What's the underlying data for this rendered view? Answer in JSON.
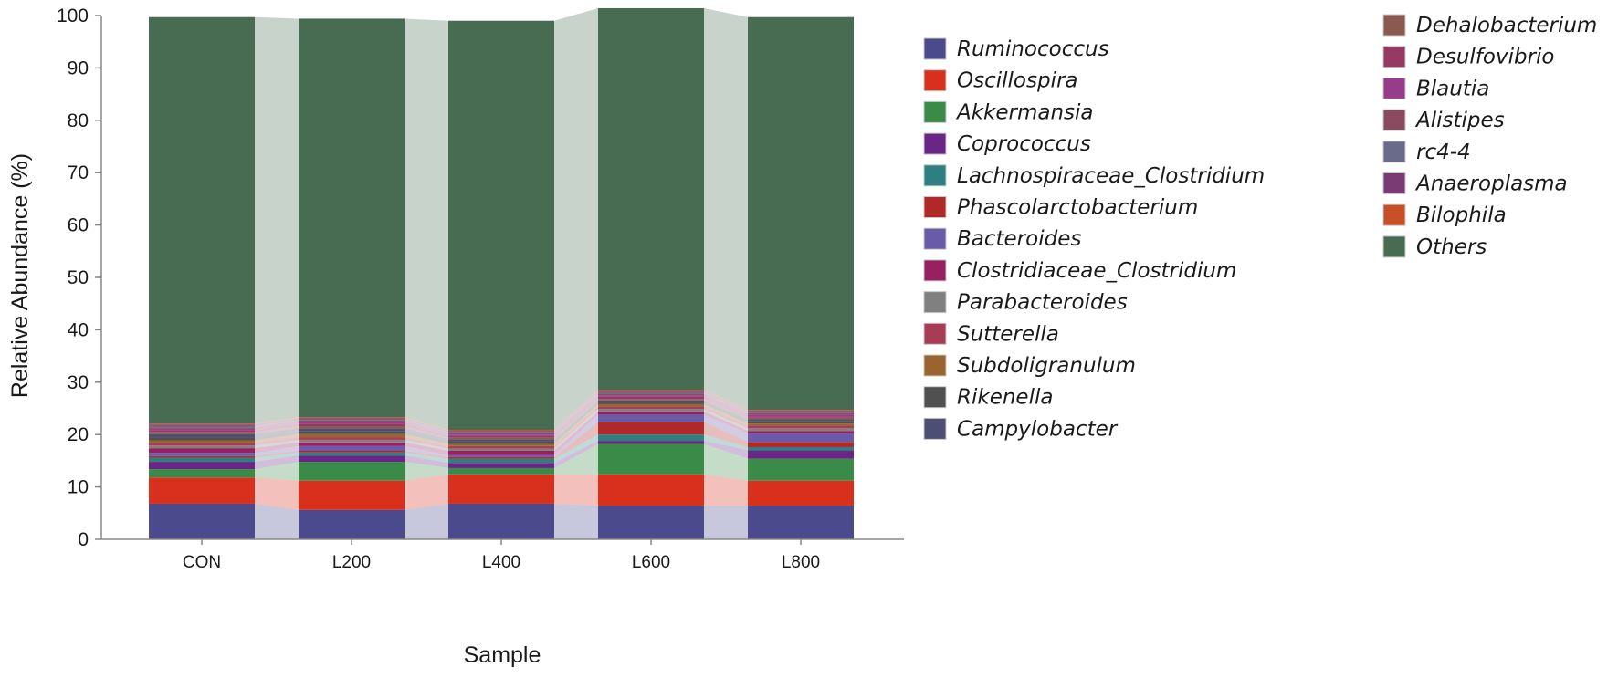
{
  "chart_data": {
    "type": "bar",
    "stacked": true,
    "xlabel": "Sample",
    "ylabel": "Relative Abundance (%)",
    "ylim": [
      0,
      100
    ],
    "yticks": [
      0,
      10,
      20,
      30,
      40,
      50,
      60,
      70,
      80,
      90,
      100
    ],
    "grid": false,
    "legend_position": "right",
    "connector_bands": true,
    "categories": [
      "CON",
      "L200",
      "L400",
      "L600",
      "L800"
    ],
    "series": [
      {
        "name": "Ruminococcus",
        "color": "#4a4a8c",
        "values": [
          6.8,
          5.6,
          6.8,
          6.4,
          6.4
        ]
      },
      {
        "name": "Oscillospira",
        "color": "#d9301e",
        "values": [
          5.0,
          5.6,
          5.6,
          6.0,
          4.8
        ]
      },
      {
        "name": "Akkermansia",
        "color": "#3a8a48",
        "values": [
          1.6,
          3.6,
          1.2,
          5.8,
          4.2
        ]
      },
      {
        "name": "Coprococcus",
        "color": "#6a2686",
        "values": [
          1.4,
          1.2,
          1.0,
          0.6,
          1.6
        ]
      },
      {
        "name": "Lachnospiraceae_Clostridium",
        "color": "#2e8080",
        "values": [
          0.8,
          0.6,
          0.8,
          1.2,
          0.6
        ]
      },
      {
        "name": "Phascolarctobacterium",
        "color": "#b02828",
        "values": [
          0.3,
          0.3,
          0.3,
          2.4,
          1.0
        ]
      },
      {
        "name": "Bacteroides",
        "color": "#6a5aaa",
        "values": [
          0.6,
          0.9,
          0.4,
          1.4,
          1.6
        ]
      },
      {
        "name": "Clostridiaceae_Clostridium",
        "color": "#962060",
        "values": [
          0.9,
          0.7,
          0.8,
          0.6,
          0.5
        ]
      },
      {
        "name": "Parabacteroides",
        "color": "#808080",
        "values": [
          0.5,
          0.5,
          0.4,
          0.5,
          0.5
        ]
      },
      {
        "name": "Sutterella",
        "color": "#a83c54",
        "values": [
          0.5,
          0.5,
          0.5,
          0.5,
          0.5
        ]
      },
      {
        "name": "Subdoligranulum",
        "color": "#9a6430",
        "values": [
          0.5,
          0.6,
          0.4,
          0.4,
          0.4
        ]
      },
      {
        "name": "Rikenella",
        "color": "#505050",
        "values": [
          0.6,
          0.6,
          0.6,
          0.4,
          0.5
        ]
      },
      {
        "name": "Campylobacter",
        "color": "#4e4e74",
        "values": [
          0.6,
          0.5,
          0.3,
          0.3,
          0.3
        ]
      },
      {
        "name": "Dehalobacterium",
        "color": "#8a5a50",
        "values": [
          0.4,
          0.4,
          0.3,
          0.3,
          0.3
        ]
      },
      {
        "name": "Desulfovibrio",
        "color": "#963a64",
        "values": [
          0.3,
          0.5,
          0.3,
          0.4,
          0.3
        ]
      },
      {
        "name": "Blautia",
        "color": "#963c8a",
        "values": [
          0.3,
          0.3,
          0.3,
          0.3,
          0.3
        ]
      },
      {
        "name": "Alistipes",
        "color": "#8a4a60",
        "values": [
          0.3,
          0.3,
          0.3,
          0.3,
          0.3
        ]
      },
      {
        "name": "rc4-4",
        "color": "#6a6a8a",
        "values": [
          0.3,
          0.2,
          0.2,
          0.3,
          0.2
        ]
      },
      {
        "name": "Anaeroplasma",
        "color": "#7a3a74",
        "values": [
          0.2,
          0.2,
          0.2,
          0.2,
          0.2
        ]
      },
      {
        "name": "Bilophila",
        "color": "#c85028",
        "values": [
          0.2,
          0.2,
          0.2,
          0.2,
          0.2
        ]
      },
      {
        "name": "Others",
        "color": "#476c52",
        "values": [
          77.6,
          76.1,
          78.1,
          72.9,
          75.0
        ]
      }
    ]
  }
}
